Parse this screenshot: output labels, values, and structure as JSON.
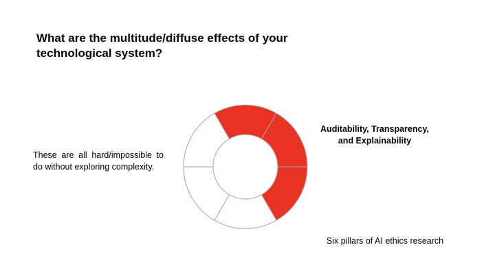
{
  "slide": {
    "title": "What are the multitude/diffuse effects of your technological system?",
    "body_text": "These are all hard/impossible to do without exploring complexity.",
    "highlight_label_line1": "Auditability, Transparency,",
    "highlight_label_line2": "and Explainability",
    "caption": "Six pillars of AI ethics research"
  },
  "diagram": {
    "segment_count": 6,
    "highlight_color": "#e83223",
    "base_color": "#ffffff",
    "stroke_color": "#a6a6a6",
    "segments": [
      {
        "highlighted": true
      },
      {
        "highlighted": true
      },
      {
        "highlighted": true
      },
      {
        "highlighted": false
      },
      {
        "highlighted": false
      },
      {
        "highlighted": false
      }
    ]
  }
}
